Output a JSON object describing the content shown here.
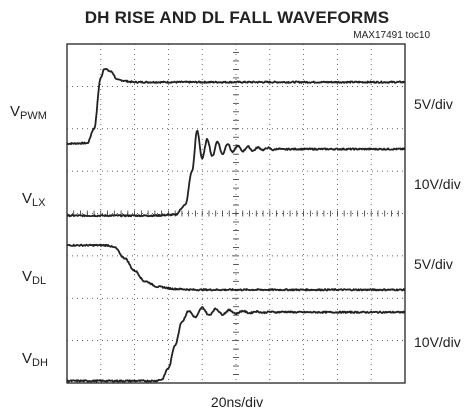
{
  "chart_data": {
    "type": "line",
    "title": "DH RISE AND DL FALL WAVEFORMS",
    "subtitle": "MAX17491 toc10",
    "x_scale": "20ns/div",
    "grid": true,
    "grid_divisions": {
      "x": 10,
      "y": 8
    },
    "x_range_div": [
      0,
      10
    ],
    "y_range_div": [
      0,
      8
    ],
    "series": [
      {
        "name_prefix": "V",
        "name_sub": "PWM",
        "scale": "5V/div",
        "color": "#222222",
        "x": [
          0,
          0.6,
          0.8,
          1.0,
          1.1,
          1.3,
          1.5,
          2.0,
          3.0,
          5.0,
          7.0,
          10.0
        ],
        "y": [
          5.65,
          5.66,
          6.0,
          7.2,
          7.42,
          7.35,
          7.15,
          7.1,
          7.1,
          7.1,
          7.1,
          7.1
        ]
      },
      {
        "name_prefix": "V",
        "name_sub": "LX",
        "scale": "10V/div",
        "color": "#222222",
        "x": [
          0,
          2.5,
          3.2,
          3.5,
          3.7,
          3.85,
          4.0,
          4.15,
          4.3,
          4.45,
          4.6,
          4.75,
          4.9,
          5.05,
          5.2,
          5.35,
          5.5,
          5.65,
          5.8,
          5.95,
          6.1,
          6.25,
          6.4,
          6.6,
          7.0,
          8.0,
          10.0
        ],
        "y": [
          3.95,
          3.95,
          3.97,
          4.2,
          5.0,
          5.95,
          5.3,
          5.75,
          5.35,
          5.7,
          5.4,
          5.65,
          5.45,
          5.6,
          5.47,
          5.58,
          5.48,
          5.56,
          5.5,
          5.55,
          5.5,
          5.53,
          5.51,
          5.52,
          5.52,
          5.52,
          5.52
        ]
      },
      {
        "name_prefix": "V",
        "name_sub": "DL",
        "scale": "5V/div",
        "color": "#222222",
        "x": [
          0,
          1.2,
          1.4,
          1.7,
          2.0,
          2.3,
          2.7,
          3.2,
          3.8,
          4.5,
          6.0,
          10.0
        ],
        "y": [
          3.25,
          3.25,
          3.2,
          2.95,
          2.65,
          2.4,
          2.27,
          2.22,
          2.2,
          2.2,
          2.2,
          2.2
        ]
      },
      {
        "name_prefix": "V",
        "name_sub": "DH",
        "scale": "10V/div",
        "color": "#222222",
        "x": [
          0,
          2.6,
          2.8,
          3.0,
          3.2,
          3.4,
          3.6,
          3.8,
          4.0,
          4.2,
          4.4,
          4.6,
          4.8,
          5.0,
          5.2,
          5.4,
          5.6,
          5.8,
          6.0,
          6.2,
          6.4,
          6.8,
          7.5,
          10.0
        ],
        "y": [
          0.05,
          0.05,
          0.08,
          0.35,
          0.9,
          1.45,
          1.7,
          1.55,
          1.78,
          1.6,
          1.75,
          1.62,
          1.72,
          1.64,
          1.7,
          1.65,
          1.69,
          1.66,
          1.68,
          1.67,
          1.68,
          1.67,
          1.67,
          1.67
        ]
      }
    ]
  }
}
